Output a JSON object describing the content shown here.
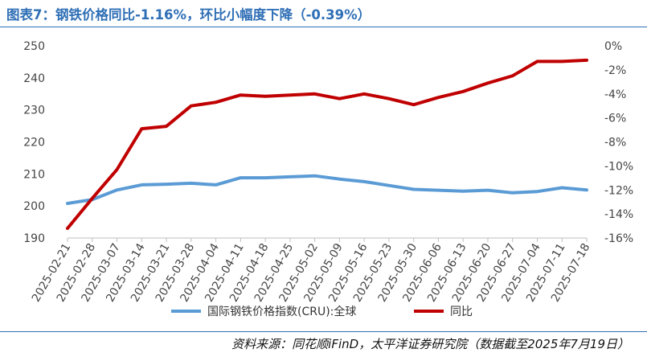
{
  "title": "图表7：钢铁价格同比-1.16%，环比小幅度下降（-0.39%）",
  "source": "资料来源：同花顺iFinD，太平洋证券研究院（数据截至2025年7月19日）",
  "colors": {
    "title": "#2f6fb6",
    "index_series": "#5b9bd5",
    "yoy_series": "#c00000",
    "axis": "#bfbfbf"
  },
  "chart_data": {
    "type": "line",
    "x": [
      "2025-02-21",
      "2025-02-28",
      "2025-03-07",
      "2025-03-14",
      "2025-03-21",
      "2025-03-28",
      "2025-04-04",
      "2025-04-11",
      "2025-04-18",
      "2025-04-25",
      "2025-05-02",
      "2025-05-09",
      "2025-05-16",
      "2025-05-23",
      "2025-05-30",
      "2025-06-06",
      "2025-06-13",
      "2025-06-20",
      "2025-06-27",
      "2025-07-04",
      "2025-07-11",
      "2025-07-18"
    ],
    "y_left_ticks": [
      "250",
      "240",
      "230",
      "220",
      "210",
      "200",
      "190"
    ],
    "y_right_ticks": [
      "0%",
      "-2%",
      "-4%",
      "-6%",
      "-8%",
      "-10%",
      "-12%",
      "-14%",
      "-16%"
    ],
    "y_left_range": [
      190,
      250
    ],
    "y_right_range": [
      -16,
      0
    ],
    "legend_position": "bottom",
    "series": [
      {
        "name": "国际钢铁价格指数(CRU):全球",
        "axis": "left",
        "values": [
          200.8,
          202.0,
          205.0,
          206.6,
          206.8,
          207.1,
          206.6,
          208.8,
          208.8,
          209.1,
          209.4,
          208.4,
          207.6,
          206.4,
          205.2,
          204.9,
          204.6,
          204.9,
          204.1,
          204.5,
          205.7,
          205.0
        ]
      },
      {
        "name": "同比",
        "axis": "right",
        "values": [
          -15.2,
          -12.7,
          -10.3,
          -6.9,
          -6.7,
          -5.0,
          -4.7,
          -4.1,
          -4.2,
          -4.1,
          -4.0,
          -4.4,
          -4.0,
          -4.4,
          -4.9,
          -4.3,
          -3.8,
          -3.1,
          -2.5,
          -1.3,
          -1.3,
          -1.2
        ]
      }
    ]
  }
}
